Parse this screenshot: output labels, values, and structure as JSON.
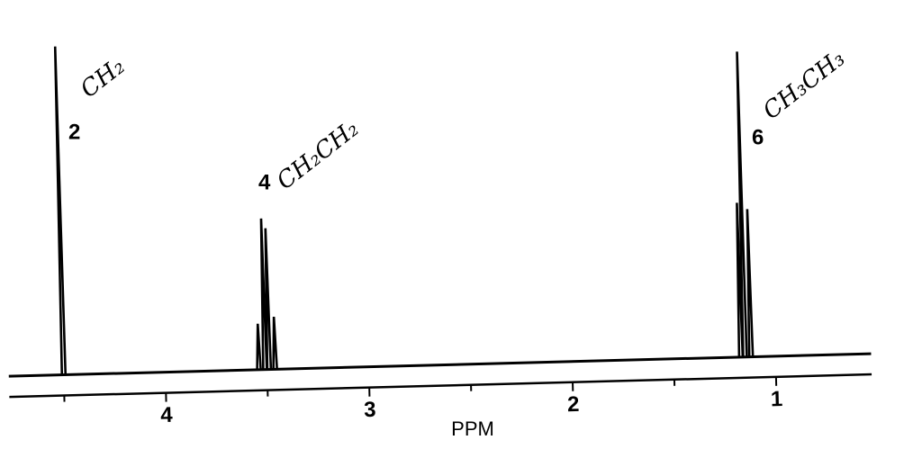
{
  "chart_data": {
    "type": "spectrum",
    "xlabel": "PPM",
    "xlim": [
      4.77,
      0.53
    ],
    "xticks": [
      4,
      3,
      2,
      1
    ],
    "minor_xticks": [
      4.5,
      3.5,
      2.5,
      1.5
    ],
    "ylim": [
      0,
      100
    ],
    "color": "#000000",
    "x": [
      4.5,
      3.54,
      3.51,
      3.49,
      3.46,
      1.17,
      1.15,
      1.12
    ],
    "values": [
      100,
      14,
      46,
      43,
      16,
      47,
      93,
      45
    ],
    "annotations": [
      {
        "label": "2",
        "group": "CH₂"
      },
      {
        "label": "4",
        "group": "CH₂CH₂"
      },
      {
        "label": "6",
        "group": "CH₃CH₃"
      }
    ]
  }
}
